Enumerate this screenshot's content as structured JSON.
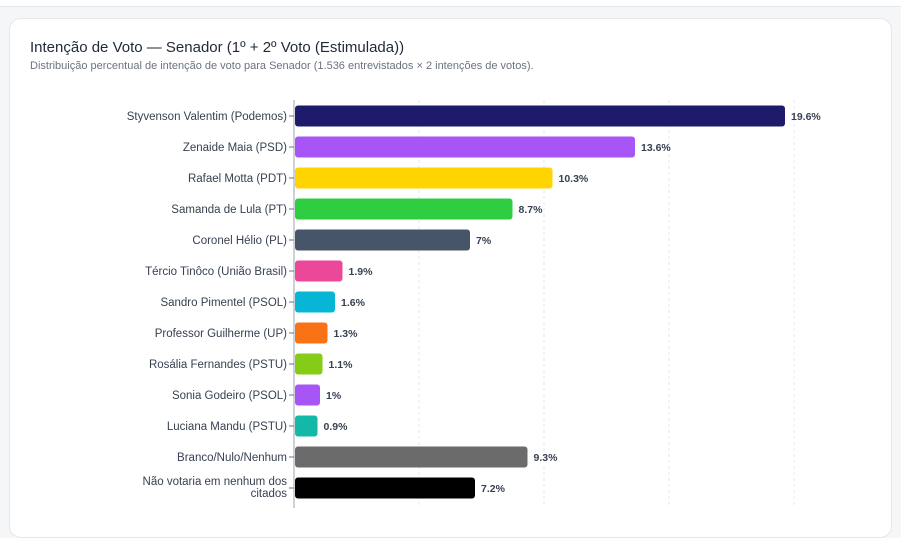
{
  "title": "Intenção de Voto — Senador (1º + 2º Voto (Estimulada))",
  "subtitle": "Distribuição percentual de intenção de voto para Senador (1.536 entrevistados × 2 intenções de votos).",
  "chart_data": {
    "type": "bar",
    "orientation": "horizontal",
    "title": "Intenção de Voto — Senador (1º + 2º Voto (Estimulada))",
    "subtitle": "Distribuição percentual de intenção de voto para Senador (1.536 entrevistados × 2 intenções de votos).",
    "categories": [
      "Styvenson Valentim (Podemos)",
      "Zenaide Maia (PSD)",
      "Rafael Motta (PDT)",
      "Samanda de Lula (PT)",
      "Coronel Hélio (PL)",
      "Tércio Tinôco (União Brasil)",
      "Sandro Pimentel (PSOL)",
      "Professor Guilherme (UP)",
      "Rosália Fernandes (PSTU)",
      "Sonia Godeiro (PSOL)",
      "Luciana Mandu (PSTU)",
      "Branco/Nulo/Nenhum",
      "Não votaria em nenhum dos citados"
    ],
    "values": [
      19.6,
      13.6,
      10.3,
      8.7,
      7,
      1.9,
      1.6,
      1.3,
      1.1,
      1,
      0.9,
      9.3,
      7.2
    ],
    "value_labels": [
      "19.6%",
      "13.6%",
      "10.3%",
      "8.7%",
      "7%",
      "1.9%",
      "1.6%",
      "1.3%",
      "1.1%",
      "1%",
      "0.9%",
      "9.3%",
      "7.2%"
    ],
    "colors": [
      "#1e1b6b",
      "#a855f7",
      "#ffd400",
      "#2ecc40",
      "#475569",
      "#ec4899",
      "#06b6d4",
      "#f97316",
      "#84cc16",
      "#a855f7",
      "#14b8a6",
      "#6b6b6b",
      "#000000"
    ],
    "xlim": [
      0,
      22
    ],
    "grid": true,
    "legend": "none"
  }
}
